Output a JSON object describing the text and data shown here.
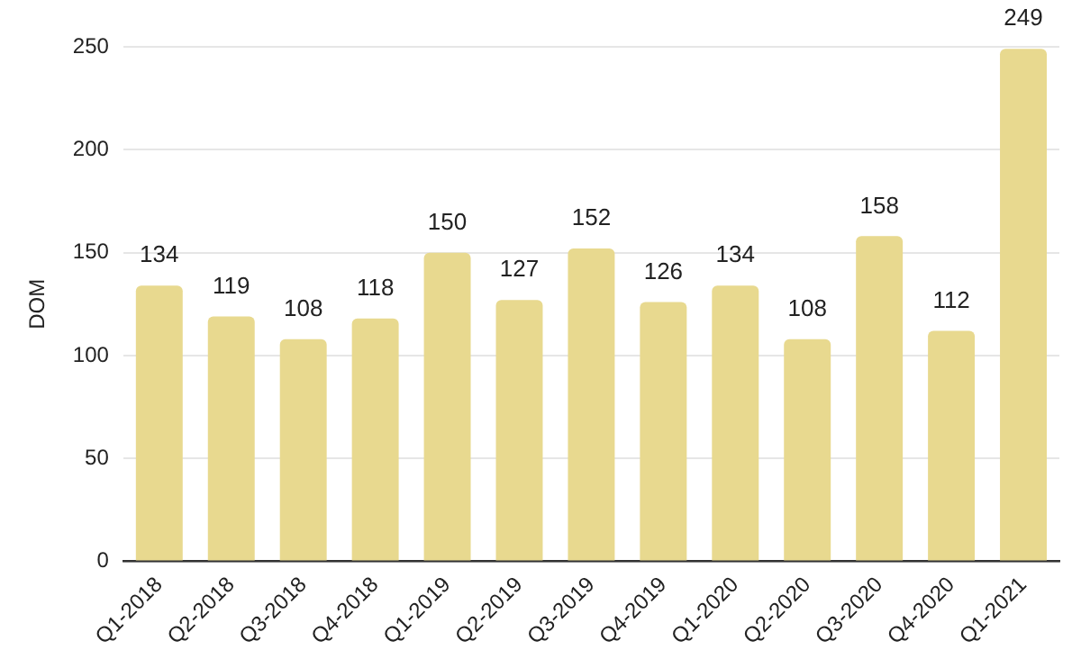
{
  "chart_data": {
    "type": "bar",
    "ylabel": "DOM",
    "categories": [
      "Q1-2018",
      "Q2-2018",
      "Q3-2018",
      "Q4-2018",
      "Q1-2019",
      "Q2-2019",
      "Q3-2019",
      "Q4-2019",
      "Q1-2020",
      "Q2-2020",
      "Q3-2020",
      "Q4-2020",
      "Q1-2021"
    ],
    "values": [
      134,
      119,
      108,
      118,
      150,
      127,
      152,
      126,
      134,
      108,
      158,
      112,
      249
    ],
    "color": "#e8d98f",
    "ylim": [
      0,
      250
    ],
    "yticks": [
      0,
      50,
      100,
      150,
      200,
      250
    ],
    "grid": "y",
    "data_labels": true
  }
}
